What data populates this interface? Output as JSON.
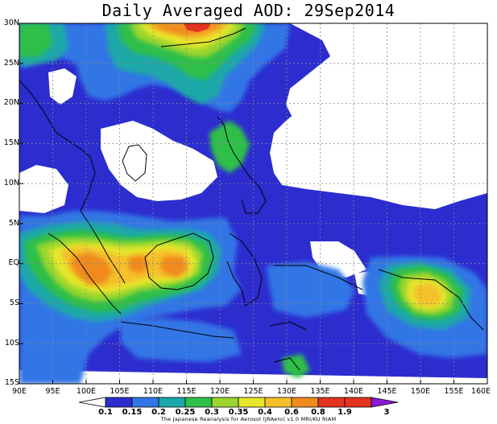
{
  "title": "Daily Averaged AOD: 29Sep2014",
  "credit": "The Japanese Reanalysis for Aerosol (JRAero) v1.0 MRI/KU RIAM",
  "map": {
    "lat_labels": [
      "30N",
      "25N",
      "20N",
      "15N",
      "10N",
      "5N",
      "EQ",
      "5S",
      "10S",
      "15S"
    ],
    "lon_labels": [
      "90E",
      "95E",
      "100E",
      "105E",
      "110E",
      "115E",
      "120E",
      "125E",
      "130E",
      "135E",
      "140E",
      "145E",
      "150E",
      "155E",
      "160E"
    ],
    "lat_range": [
      -15,
      30
    ],
    "lon_range": [
      90,
      160
    ]
  },
  "colorbar": {
    "labels": [
      "0.1",
      "0.15",
      "0.2",
      "0.25",
      "0.3",
      "0.35",
      "0.4",
      "0.6",
      "0.8",
      "1.9",
      "3"
    ],
    "colors": [
      "#ffffff",
      "#2c2ccf",
      "#3276e6",
      "#1aa8a8",
      "#2fbf4a",
      "#9ad62f",
      "#e6e62a",
      "#f5c02a",
      "#f08a1f",
      "#e3341f",
      "#8a1ad9"
    ]
  },
  "legend_colors": {
    "lt015": "#2c2ccf",
    "lt02": "#3276e6",
    "lt025": "#1aa8a8",
    "lt03": "#2fbf4a",
    "lt035": "#9ad62f",
    "lt04": "#e6e62a",
    "lt06": "#f5c02a",
    "lt08": "#f08a1f",
    "lt19": "#e3341f"
  }
}
